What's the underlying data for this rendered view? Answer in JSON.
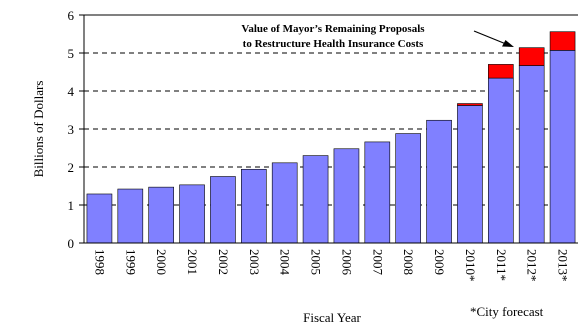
{
  "chart_data": {
    "type": "bar",
    "stacked": true,
    "xlabel": "Fiscal Year",
    "ylabel": "Billions of Dollars",
    "ylim": [
      0,
      6
    ],
    "yticks": [
      0,
      1,
      2,
      3,
      4,
      5,
      6
    ],
    "grid": "dashed horizontal",
    "categories": [
      "1998",
      "1999",
      "2000",
      "2001",
      "2002",
      "2003",
      "2004",
      "2005",
      "2006",
      "2007",
      "2008",
      "2009",
      "2010*",
      "2011*",
      "2012*",
      "2013*"
    ],
    "series": [
      {
        "color": "#8080ff",
        "values": [
          1.29,
          1.42,
          1.47,
          1.53,
          1.75,
          1.94,
          2.11,
          2.3,
          2.48,
          2.66,
          2.88,
          3.23,
          3.62,
          4.34,
          4.67,
          5.07
        ]
      },
      {
        "color": "#ff0000",
        "values": [
          0,
          0,
          0,
          0,
          0,
          0,
          0,
          0,
          0,
          0,
          0,
          0,
          0.05,
          0.36,
          0.47,
          0.49
        ]
      }
    ],
    "annotation": {
      "lines": [
        "Value of Mayor’s Remaining Proposals",
        "to Restructure Health Insurance Costs"
      ]
    },
    "footnote": "*City forecast"
  }
}
